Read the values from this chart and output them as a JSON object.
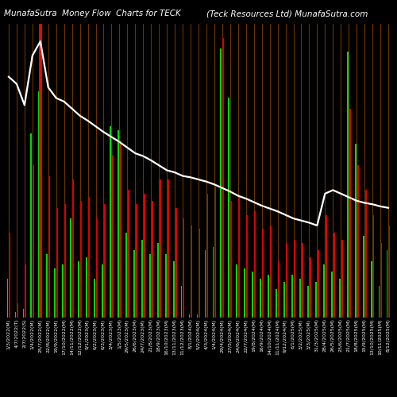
{
  "title_left": "MunafaSutra  Money Flow  Charts for TECK",
  "title_right": "(Teck Resources Ltd) MunafaSutra.com",
  "bg_color": "#000000",
  "bar_color_up": "#00dd00",
  "bar_color_down": "#dd0000",
  "line_color": "#ffffff",
  "sep_color": "#7a3800",
  "dates": [
    "1/3/2022(M)",
    "4/7/2022(T)",
    "2/7/2022(S)",
    "1/4/2022(M)",
    "25/7/2022(M)",
    "22/8/2022(M)",
    "19/9/2022(M)",
    "17/10/2022(M)",
    "14/11/2022(M)",
    "12/12/2022(M)",
    "9/1/2023(M)",
    "6/2/2023(M)",
    "6/3/2023(M)",
    "3/4/2023(M)",
    "1/5/2023(M)",
    "29/5/2023(M)",
    "26/6/2023(M)",
    "24/7/2023(M)",
    "21/8/2023(M)",
    "18/9/2023(M)",
    "16/10/2023(M)",
    "13/11/2023(M)",
    "11/12/2023(M)",
    "8/1/2024(M)",
    "5/2/2024(M)",
    "4/3/2024(M)",
    "1/4/2024(M)",
    "29/4/2024(M)",
    "27/5/2024(M)",
    "24/6/2024(M)",
    "22/7/2024(M)",
    "19/8/2024(M)",
    "16/9/2024(M)",
    "14/10/2024(M)",
    "11/11/2024(M)",
    "9/12/2024(M)",
    "6/1/2025(M)",
    "3/2/2025(M)",
    "3/3/2025(M)",
    "31/3/2025(M)",
    "28/4/2025(M)",
    "26/5/2025(M)",
    "23/6/2025(M)",
    "21/7/2025(M)",
    "18/8/2025(M)",
    "15/9/2025(M)",
    "13/10/2025(M)",
    "10/11/2025(M)",
    "8/12/2025(M)"
  ],
  "green_bars": [
    55,
    8,
    12,
    260,
    320,
    90,
    70,
    75,
    140,
    80,
    85,
    55,
    75,
    270,
    265,
    120,
    95,
    110,
    90,
    105,
    90,
    80,
    45,
    5,
    5,
    95,
    100,
    380,
    310,
    75,
    70,
    65,
    55,
    60,
    40,
    50,
    60,
    55,
    45,
    50,
    75,
    65,
    55,
    375,
    245,
    115,
    80,
    45,
    95
  ],
  "red_bars": [
    120,
    20,
    75,
    215,
    380,
    200,
    155,
    160,
    195,
    165,
    170,
    140,
    160,
    230,
    250,
    180,
    160,
    175,
    165,
    195,
    195,
    155,
    140,
    130,
    125,
    175,
    185,
    395,
    165,
    170,
    145,
    150,
    125,
    130,
    80,
    105,
    110,
    105,
    85,
    95,
    145,
    120,
    110,
    295,
    215,
    180,
    145,
    105,
    130
  ],
  "line_values": [
    340,
    330,
    300,
    370,
    390,
    325,
    310,
    305,
    295,
    285,
    278,
    270,
    262,
    255,
    248,
    240,
    232,
    228,
    222,
    215,
    208,
    205,
    200,
    198,
    195,
    192,
    188,
    183,
    178,
    172,
    168,
    163,
    158,
    154,
    150,
    145,
    140,
    137,
    134,
    130,
    175,
    180,
    175,
    170,
    165,
    162,
    160,
    157,
    155
  ],
  "red_vline_index": 4,
  "title_fontsize": 7.5,
  "tick_fontsize": 4.5
}
